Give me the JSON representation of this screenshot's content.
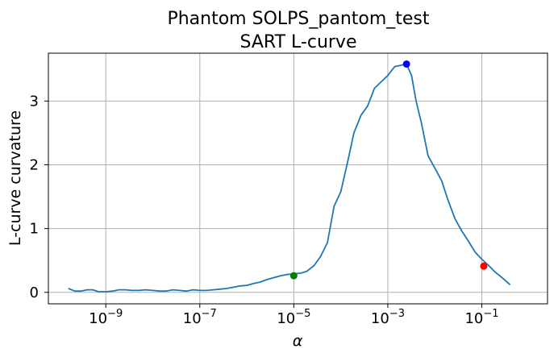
{
  "chart_data": {
    "type": "line",
    "title_lines": [
      "Phantom SOLPS_pantom_test",
      "SART L-curve"
    ],
    "xlabel": "α",
    "ylabel": "L-curve curvature",
    "x_scale": "log",
    "xlim": [
      6e-11,
      2.5
    ],
    "ylim": [
      -0.18,
      3.75
    ],
    "grid": true,
    "x_ticks": [
      {
        "value": 1e-09,
        "base": "10",
        "exp": "−9"
      },
      {
        "value": 1e-07,
        "base": "10",
        "exp": "−7"
      },
      {
        "value": 1e-05,
        "base": "10",
        "exp": "−5"
      },
      {
        "value": 0.001,
        "base": "10",
        "exp": "−3"
      },
      {
        "value": 0.1,
        "base": "10",
        "exp": "−1"
      }
    ],
    "y_ticks": [
      {
        "value": 0,
        "label": "0"
      },
      {
        "value": 1,
        "label": "1"
      },
      {
        "value": 2,
        "label": "2"
      },
      {
        "value": 3,
        "label": "3"
      }
    ],
    "series": [
      {
        "color": "#1f77b4",
        "x": [
          1.6e-10,
          2.2e-10,
          3e-10,
          4e-10,
          5.3e-10,
          7e-10,
          1e-09,
          1.4e-09,
          1.9e-09,
          2.6e-09,
          3.6e-09,
          5e-09,
          7e-09,
          1e-08,
          1.4e-08,
          1.9e-08,
          2.7e-08,
          3.7e-08,
          5.2e-08,
          7.2e-08,
          1e-07,
          1.4e-07,
          1.9e-07,
          2.7e-07,
          3.7e-07,
          5.2e-07,
          7.2e-07,
          1e-06,
          1.4e-06,
          1.9e-06,
          2.7e-06,
          3.7e-06,
          5.2e-06,
          7.2e-06,
          1e-05,
          1.4e-05,
          1.9e-05,
          2.7e-05,
          3.7e-05,
          5.2e-05,
          7.2e-05,
          0.0001,
          0.00014,
          0.00019,
          0.00027,
          0.00037,
          0.00052,
          0.00072,
          0.001,
          0.0014,
          0.0019,
          0.0025,
          0.0032,
          0.004,
          0.0052,
          0.0072,
          0.01,
          0.014,
          0.019,
          0.027,
          0.037,
          0.052,
          0.072,
          0.1,
          0.14,
          0.19,
          0.27,
          0.4
        ],
        "y": [
          0.06,
          0.02,
          0.02,
          0.04,
          0.04,
          0.01,
          0.01,
          0.02,
          0.04,
          0.04,
          0.03,
          0.03,
          0.04,
          0.03,
          0.02,
          0.02,
          0.04,
          0.03,
          0.02,
          0.04,
          0.03,
          0.03,
          0.04,
          0.05,
          0.06,
          0.08,
          0.1,
          0.11,
          0.14,
          0.16,
          0.2,
          0.23,
          0.26,
          0.28,
          0.29,
          0.3,
          0.33,
          0.42,
          0.56,
          0.78,
          1.35,
          1.58,
          2.05,
          2.5,
          2.78,
          2.92,
          3.2,
          3.3,
          3.4,
          3.54,
          3.56,
          3.58,
          3.4,
          3.0,
          2.65,
          2.14,
          1.95,
          1.75,
          1.45,
          1.15,
          0.97,
          0.8,
          0.63,
          0.52,
          0.42,
          0.32,
          0.23,
          0.12
        ]
      }
    ],
    "markers": [
      {
        "x": 1e-05,
        "y": 0.26,
        "color": "#008000"
      },
      {
        "x": 0.0025,
        "y": 3.58,
        "color": "#0000ff"
      },
      {
        "x": 0.11,
        "y": 0.41,
        "color": "#ff0000"
      }
    ]
  }
}
